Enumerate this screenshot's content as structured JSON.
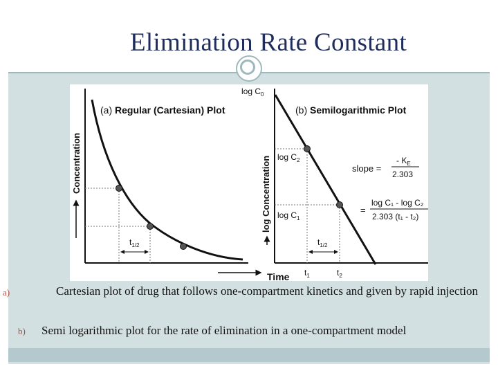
{
  "slide": {
    "title": "Elimination Rate Constant",
    "colors": {
      "title": "#1f2d5c",
      "band": "#d3e0e2",
      "bottom_bar": "#b4c9cd",
      "marker": "#b0483c"
    }
  },
  "figure": {
    "left_plot": {
      "title_prefix": "(a) ",
      "title_bold": "Regular (Cartesian) Plot",
      "ylabel": "Concentration",
      "half_life_label": "t",
      "half_life_sub": "1/2"
    },
    "right_plot": {
      "title_prefix": "(b) ",
      "title_bold": "Semilogarithmic Plot",
      "ylabel": "log Concentration",
      "xlabel": "Time",
      "log_c0": "log C",
      "log_c0_sub": "0",
      "log_c2": "log C",
      "log_c2_sub": "2",
      "log_c1": "log C",
      "log_c1_sub": "1",
      "slope_label": "slope =",
      "slope_num": "- K",
      "slope_num_sub": "E",
      "slope_den": "2.303",
      "eq_sign": "=",
      "eq_num": "log C₁ - log C₂",
      "eq_den": "2.303 (t₁ - t₂)",
      "half_life_label": "t",
      "half_life_sub": "1/2",
      "t1": "t",
      "t1_sub": "1",
      "t2": "t",
      "t2_sub": "2"
    }
  },
  "captions": [
    {
      "marker": "a)",
      "text": "Cartesian plot of drug that follows  one-compartment kinetics and given by rapid injection"
    },
    {
      "marker": "b)",
      "text": "Semi logarithmic  plot for the rate of elimination in a one-compartment model"
    }
  ]
}
